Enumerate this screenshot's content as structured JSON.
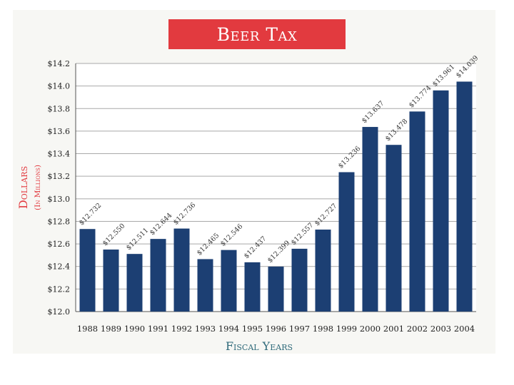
{
  "chart_data": {
    "type": "bar",
    "title": "Beer Tax",
    "xlabel": "Fiscal Years",
    "ylabel": "Dollars",
    "ylabel_sub": "(In Millions)",
    "ylim": [
      12.0,
      14.2
    ],
    "yticks": [
      "$12.0",
      "$12.2",
      "$12.4",
      "$12.6",
      "$12.8",
      "$13.0",
      "$13.2",
      "$13.4",
      "$13.6",
      "$13.8",
      "$14.0",
      "$14.2"
    ],
    "categories": [
      "1988",
      "1989",
      "1990",
      "1991",
      "1992",
      "1993",
      "1994",
      "1995",
      "1996",
      "1997",
      "1998",
      "1999",
      "2000",
      "2001",
      "2002",
      "2003",
      "2004"
    ],
    "values": [
      12.732,
      12.55,
      12.511,
      12.644,
      12.736,
      12.465,
      12.546,
      12.437,
      12.399,
      12.557,
      12.727,
      13.236,
      13.637,
      13.478,
      13.774,
      13.961,
      14.039
    ],
    "data_labels": [
      "$12.732",
      "$12.550",
      "$12.511",
      "$12.644",
      "$12.736",
      "$12.465",
      "$12.546",
      "$12.437",
      "$12.399",
      "$12.557",
      "$12.727",
      "$13.236",
      "$13.637",
      "$13.478",
      "$13.774",
      "$13.961",
      "$14.039"
    ],
    "grid": true,
    "colors": {
      "bar": "#1c3f73",
      "title_bg": "#e23a3f",
      "ylabel": "#e23a3f",
      "xlabel": "#2f6a7a",
      "grid": "#a9a9a9"
    }
  }
}
